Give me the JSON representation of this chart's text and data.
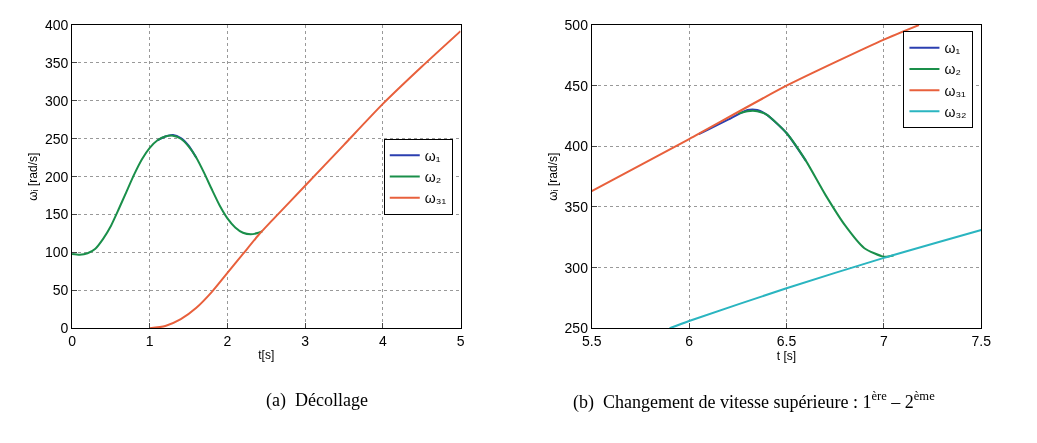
{
  "chart_data": [
    {
      "type": "line",
      "xlabel": "t[s]",
      "ylabel": "ωᵢ [rad/s]",
      "xlim": [
        0,
        5
      ],
      "ylim": [
        0,
        400
      ],
      "xticks": [
        0,
        1,
        2,
        3,
        4,
        5
      ],
      "yticks": [
        0,
        50,
        100,
        150,
        200,
        250,
        300,
        350,
        400
      ],
      "grid": true,
      "legend": "right",
      "line_style": "solid",
      "annotations": [
        "(a)  Décollage"
      ],
      "series": [
        {
          "name": "ω₁",
          "color": "#2b3fb0",
          "x": [
            1.1,
            1.2,
            1.3,
            1.4,
            1.5,
            1.6
          ],
          "values": [
            248,
            253,
            255,
            251,
            241,
            225
          ]
        },
        {
          "name": "ω₂",
          "color": "#1a8f4a",
          "x": [
            0,
            0.1,
            0.2,
            0.3,
            0.4,
            0.5,
            0.6,
            0.7,
            0.8,
            0.9,
            1.0,
            1.1,
            1.2,
            1.3,
            1.4,
            1.5,
            1.6,
            1.7,
            1.8,
            1.9,
            2.0,
            2.1,
            2.2,
            2.3,
            2.4,
            2.45
          ],
          "values": [
            98,
            97,
            99,
            105,
            118,
            135,
            157,
            180,
            203,
            223,
            238,
            248,
            253,
            254,
            250,
            240,
            225,
            205,
            183,
            162,
            145,
            133,
            126,
            124,
            126,
            128
          ]
        },
        {
          "name": "ω₃₁",
          "color": "#e8603c",
          "x": [
            1.0,
            1.2,
            1.4,
            1.6,
            1.8,
            2.0,
            2.2,
            2.4,
            2.6,
            3.0,
            3.5,
            4.0,
            4.5,
            5.0
          ],
          "values": [
            0,
            3,
            12,
            27,
            48,
            73,
            98,
            123,
            145,
            188,
            242,
            296,
            345,
            392
          ]
        }
      ]
    },
    {
      "type": "line",
      "xlabel": "t [s]",
      "ylabel": "ωᵢ [rad/s]",
      "xlim": [
        5.5,
        7.5
      ],
      "ylim": [
        250,
        500
      ],
      "xticks": [
        5.5,
        6,
        6.5,
        7,
        7.5
      ],
      "yticks": [
        250,
        300,
        350,
        400,
        450,
        500
      ],
      "grid": true,
      "legend": "top right",
      "line_style": "solid",
      "annotations": [
        "(b)  Changement de vitesse supérieure : 1$^{ère}$ – 2$^{ème}$"
      ],
      "series": [
        {
          "name": "ω₁",
          "color": "#2b3fb0",
          "x": [
            6.05,
            6.1,
            6.2,
            6.3,
            6.35,
            6.4,
            6.5,
            6.6
          ],
          "values": [
            410,
            414,
            422,
            430,
            430,
            426,
            411,
            388
          ]
        },
        {
          "name": "ω₂",
          "color": "#1a8f4a",
          "x": [
            6.25,
            6.3,
            6.35,
            6.4,
            6.5,
            6.6,
            6.7,
            6.8,
            6.9,
            7.0,
            7.05
          ],
          "values": [
            427,
            429,
            429,
            426,
            411,
            388,
            360,
            335,
            316,
            309,
            310
          ]
        },
        {
          "name": "ω₃₁",
          "color": "#e8603c",
          "x": [
            5.5,
            6.0,
            6.5,
            7.0,
            7.18
          ],
          "values": [
            363,
            406,
            450,
            488,
            500
          ]
        },
        {
          "name": "ω₃₂",
          "color": "#2ab5c0",
          "x": [
            5.9,
            6.0,
            6.5,
            7.0,
            7.5
          ],
          "values": [
            250,
            256,
            283,
            308,
            331
          ]
        }
      ]
    }
  ]
}
